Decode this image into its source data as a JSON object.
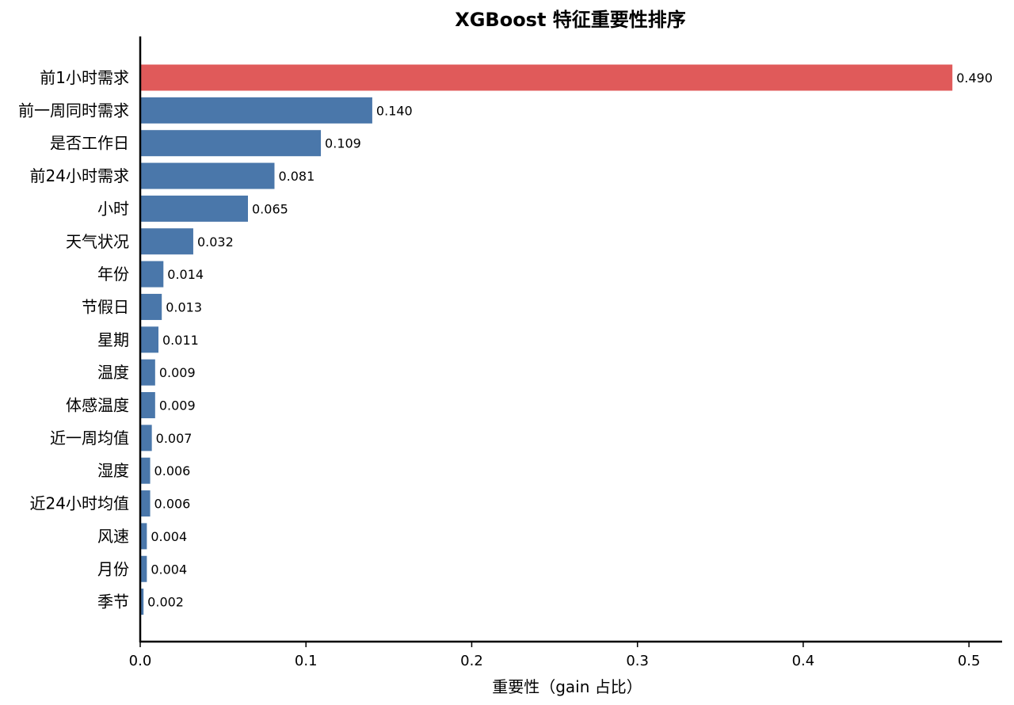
{
  "chart_data": {
    "type": "bar",
    "orientation": "horizontal",
    "title": "XGBoost 特征重要性排序",
    "xlabel": "重要性（gain 占比）",
    "ylabel": "",
    "xlim": [
      0,
      0.52
    ],
    "xticks": [
      "0.0",
      "0.1",
      "0.2",
      "0.3",
      "0.4",
      "0.5"
    ],
    "grid": false,
    "categories": [
      "前1小时需求",
      "前一周同时需求",
      "是否工作日",
      "前24小时需求",
      "小时",
      "天气状况",
      "年份",
      "节假日",
      "星期",
      "温度",
      "体感温度",
      "近一周均值",
      "湿度",
      "近24小时均值",
      "风速",
      "月份",
      "季节"
    ],
    "values": [
      0.49,
      0.14,
      0.109,
      0.081,
      0.065,
      0.032,
      0.014,
      0.013,
      0.011,
      0.009,
      0.009,
      0.007,
      0.006,
      0.006,
      0.004,
      0.004,
      0.002
    ],
    "value_labels": [
      "0.490",
      "0.140",
      "0.109",
      "0.081",
      "0.065",
      "0.032",
      "0.014",
      "0.013",
      "0.011",
      "0.009",
      "0.009",
      "0.007",
      "0.006",
      "0.006",
      "0.004",
      "0.004",
      "0.002"
    ],
    "colors": {
      "highlight": "#e05a5a",
      "default": "#4a77aa"
    },
    "highlight_index": 0
  }
}
